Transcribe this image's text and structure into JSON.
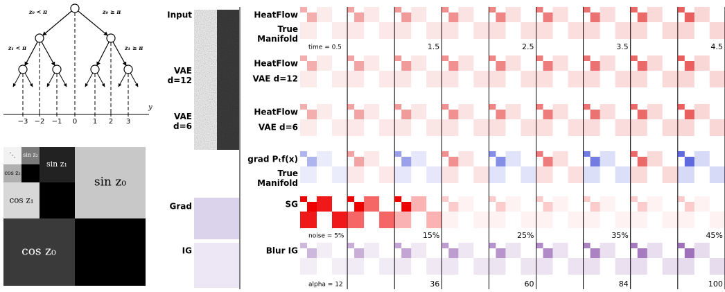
{
  "tree": {
    "edge_labels": [
      "z₀ < π",
      "z₀ ≥ π",
      "z₁ < π",
      "z₁ ≥ π"
    ],
    "axis_label": "y",
    "ticks": [
      "−3",
      "−2",
      "−1",
      "0",
      "1",
      "2",
      "3"
    ]
  },
  "blocks": {
    "labels": [
      "⋱",
      "sin z₂",
      "cos z₂",
      "sin z₁",
      "sin z₀",
      "cos z₁",
      "cos z₀"
    ]
  },
  "left_rows": [
    "Input",
    "VAE d=12",
    "VAE d=6",
    "Grad",
    "IG"
  ],
  "method_rows": [
    {
      "title": "HeatFlow",
      "subtitle": "True Manifold"
    },
    {
      "title": "HeatFlow",
      "subtitle": "VAE d=12"
    },
    {
      "title": "HeatFlow",
      "subtitle": "VAE d=6"
    },
    {
      "title": "grad Pₜf(x)",
      "subtitle": "True Manifold"
    },
    {
      "title": "SG"
    },
    {
      "title": "Blur IG"
    }
  ],
  "column_labels": {
    "time": [
      "time = 0.5",
      "1.5",
      "2.5",
      "3.5",
      "4.5"
    ],
    "noise": [
      "noise = 5%",
      "15%",
      "25%",
      "35%",
      "45%"
    ],
    "alpha": [
      "alpha = 12",
      "36",
      "60",
      "84",
      "100"
    ]
  }
}
